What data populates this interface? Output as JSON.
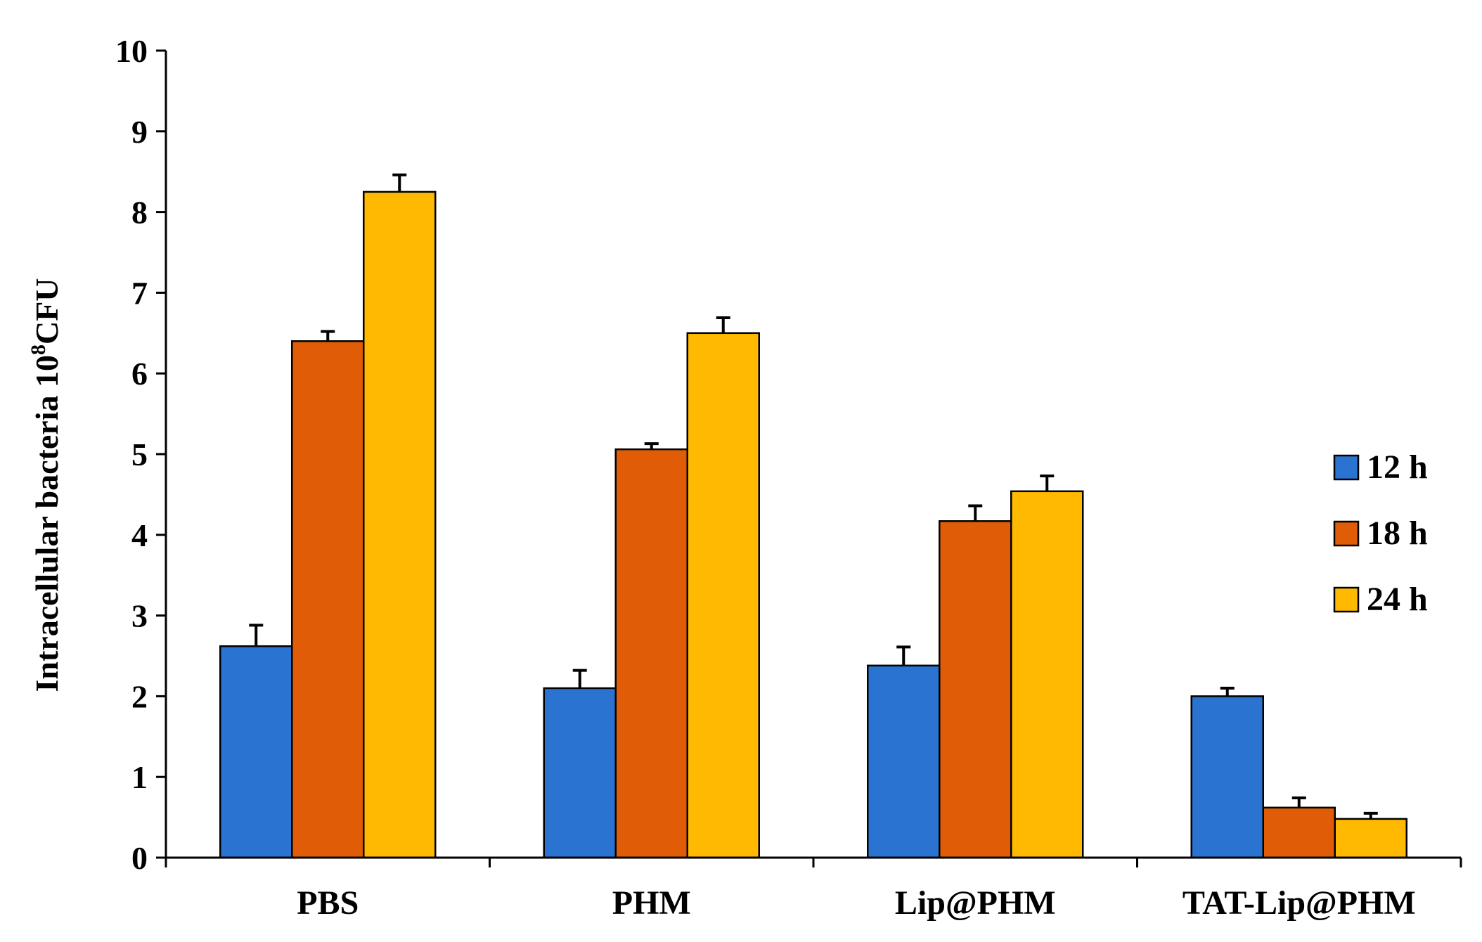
{
  "chart_data": {
    "type": "bar",
    "title": "",
    "xlabel": "",
    "ylabel_main": "Intracellular bacteria 10",
    "ylabel_sup": "8",
    "ylabel_tail": "CFU",
    "ylim": [
      0,
      10
    ],
    "yticks": [
      "0",
      "1",
      "2",
      "3",
      "4",
      "5",
      "6",
      "7",
      "8",
      "9",
      "10"
    ],
    "categories": [
      "PBS",
      "PHM",
      "Lip@PHM",
      "TAT-Lip@PHM"
    ],
    "series": [
      {
        "name": "12 h",
        "color": "#2A73D0",
        "values": [
          2.62,
          2.1,
          2.38,
          2.0
        ],
        "errors": [
          0.26,
          0.22,
          0.23,
          0.1
        ]
      },
      {
        "name": "18 h",
        "color": "#E05C06",
        "values": [
          6.4,
          5.06,
          4.17,
          0.62
        ],
        "errors": [
          0.12,
          0.07,
          0.19,
          0.12
        ]
      },
      {
        "name": "24 h",
        "color": "#FFB900",
        "values": [
          8.25,
          6.5,
          4.54,
          0.48
        ],
        "errors": [
          0.21,
          0.19,
          0.19,
          0.07
        ]
      }
    ],
    "legend_position": "right",
    "grid": false
  }
}
